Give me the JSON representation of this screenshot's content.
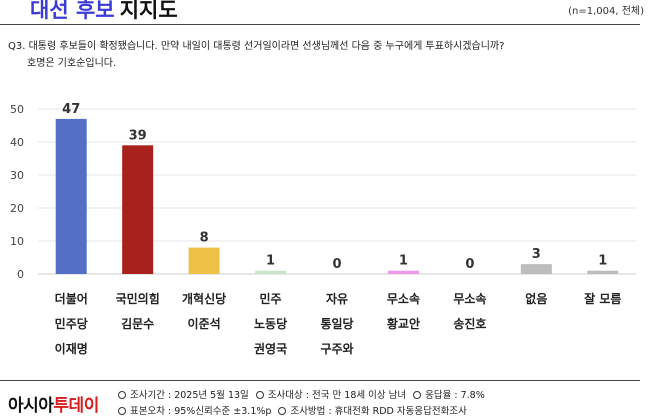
{
  "header": {
    "title_accent": "대선 후보",
    "title_rest": "지지도",
    "sample": "(n=1,004, 전체)"
  },
  "question": {
    "line1": "Q3. 대통령 후보들이 확정됐습니다. 만약 내일이 대통령 선거일이라면 선생님께선 다음 중 누구에게 투표하시겠습니까?",
    "line2": "호명은 기호순입니다."
  },
  "chart_data": {
    "type": "bar",
    "categories": [
      [
        "더불어",
        "민주당",
        "이재명"
      ],
      [
        "국민의힘",
        "김문수"
      ],
      [
        "개혁신당",
        "이준석"
      ],
      [
        "민주",
        "노동당",
        "권영국"
      ],
      [
        "자유",
        "통일당",
        "구주와"
      ],
      [
        "무소속",
        "황교안"
      ],
      [
        "무소속",
        "송진호"
      ],
      [
        "없음"
      ],
      [
        "잘 모름"
      ]
    ],
    "values": [
      47,
      39,
      8,
      1,
      0,
      1,
      0,
      3,
      1
    ],
    "colors": [
      "#5470c6",
      "#a8211c",
      "#efc046",
      "#c8e6c9",
      "#cccccc",
      "#ef9ae9",
      "#cccccc",
      "#bdbdbd",
      "#bdbdbd"
    ],
    "yticks": [
      0,
      10,
      20,
      30,
      40,
      50
    ],
    "ylim": [
      0,
      50
    ],
    "grid": true
  },
  "footer": {
    "brand_part1": "아시아",
    "brand_part2": "투데이",
    "info_line1": [
      "조사기간 : 2025년 5월 13일",
      "조사대상 : 전국 만 18세 이상 남녀",
      "응답율 : 7.8%"
    ],
    "info_line2": [
      "표본오차 : 95%신뢰수준 ±3.1%p",
      "조사방법 : 휴대전화 RDD 자동응답전화조사"
    ]
  }
}
